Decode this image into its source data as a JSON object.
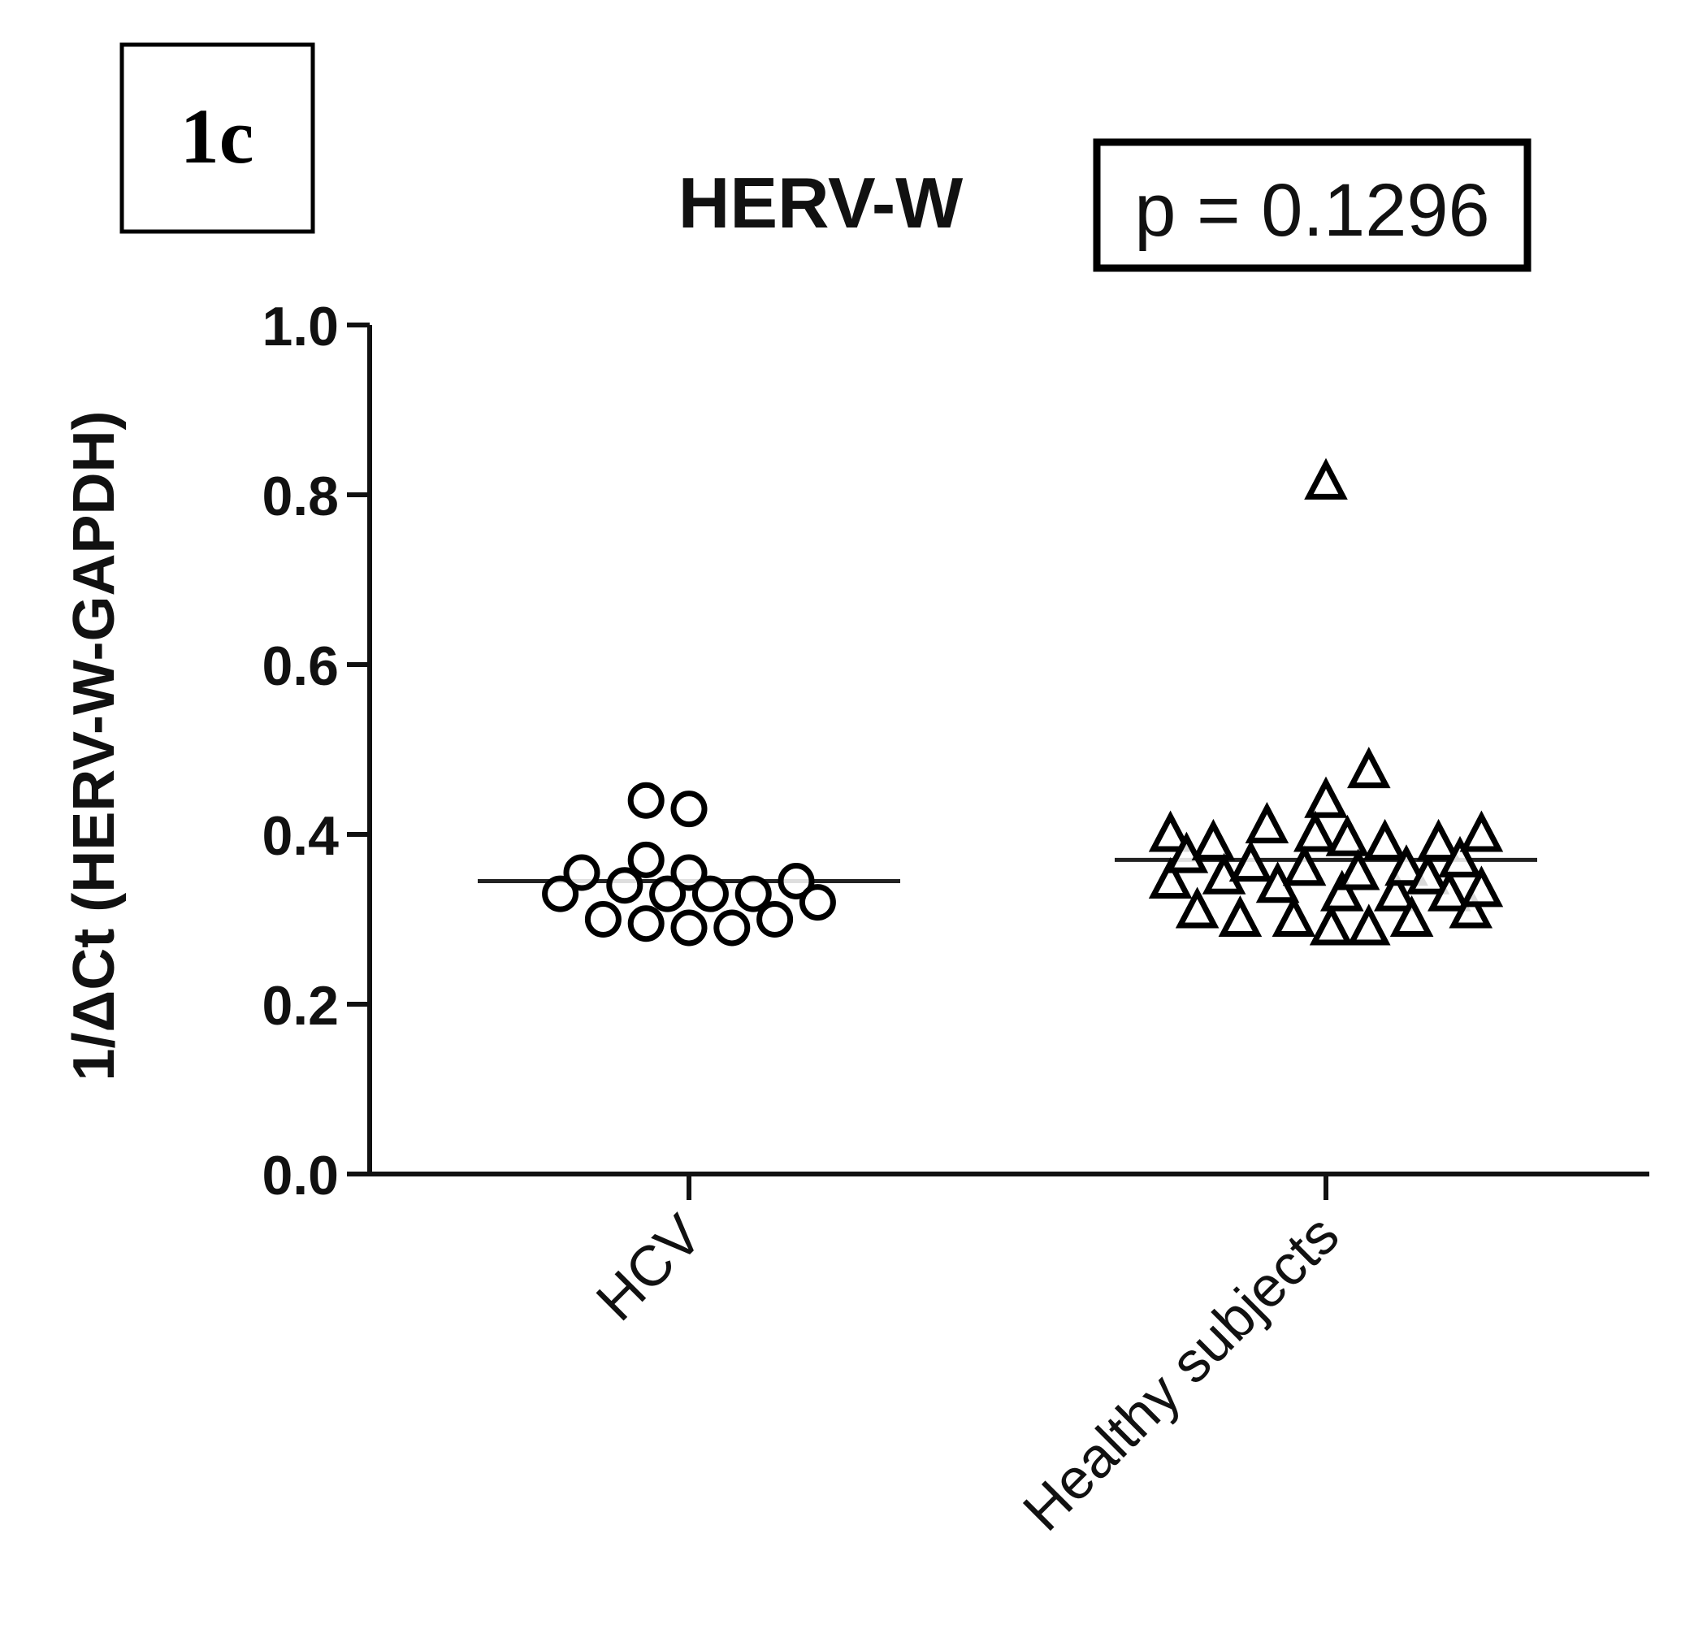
{
  "panel_label": "1c",
  "stat_label": "p = 0.1296",
  "chart_data": {
    "type": "scatter",
    "title": "HERV-W",
    "ylabel": "1/ΔCt (HERV-W-GAPDH)",
    "xlabel": "",
    "ylim": [
      0,
      1
    ],
    "yticks": [
      "0.0",
      "0.2",
      "0.4",
      "0.6",
      "0.8",
      "1.0"
    ],
    "categories": [
      "HCV",
      "Healthy subjects"
    ],
    "grid": false,
    "series": [
      {
        "category": "HCV",
        "marker": "circle",
        "mean": 0.345,
        "points": [
          {
            "dx": -0.24,
            "y": 0.33
          },
          {
            "dx": -0.2,
            "y": 0.355
          },
          {
            "dx": -0.16,
            "y": 0.3
          },
          {
            "dx": -0.12,
            "y": 0.34
          },
          {
            "dx": -0.08,
            "y": 0.44
          },
          {
            "dx": -0.08,
            "y": 0.37
          },
          {
            "dx": -0.08,
            "y": 0.295
          },
          {
            "dx": -0.04,
            "y": 0.33
          },
          {
            "dx": 0.0,
            "y": 0.43
          },
          {
            "dx": 0.0,
            "y": 0.355
          },
          {
            "dx": 0.0,
            "y": 0.29
          },
          {
            "dx": 0.04,
            "y": 0.33
          },
          {
            "dx": 0.08,
            "y": 0.29
          },
          {
            "dx": 0.12,
            "y": 0.33
          },
          {
            "dx": 0.16,
            "y": 0.3
          },
          {
            "dx": 0.2,
            "y": 0.345
          },
          {
            "dx": 0.24,
            "y": 0.32
          }
        ]
      },
      {
        "category": "Healthy subjects",
        "marker": "triangle",
        "mean": 0.37,
        "points": [
          {
            "dx": 0.0,
            "y": 0.815
          },
          {
            "dx": 0.08,
            "y": 0.475
          },
          {
            "dx": 0.0,
            "y": 0.44
          },
          {
            "dx": -0.29,
            "y": 0.4
          },
          {
            "dx": -0.29,
            "y": 0.345
          },
          {
            "dx": -0.26,
            "y": 0.375
          },
          {
            "dx": -0.24,
            "y": 0.31
          },
          {
            "dx": -0.21,
            "y": 0.39
          },
          {
            "dx": -0.19,
            "y": 0.35
          },
          {
            "dx": -0.16,
            "y": 0.3
          },
          {
            "dx": -0.14,
            "y": 0.365
          },
          {
            "dx": -0.11,
            "y": 0.41
          },
          {
            "dx": -0.09,
            "y": 0.34
          },
          {
            "dx": -0.06,
            "y": 0.3
          },
          {
            "dx": -0.04,
            "y": 0.36
          },
          {
            "dx": -0.02,
            "y": 0.4
          },
          {
            "dx": 0.01,
            "y": 0.29
          },
          {
            "dx": 0.03,
            "y": 0.33
          },
          {
            "dx": 0.04,
            "y": 0.395
          },
          {
            "dx": 0.06,
            "y": 0.355
          },
          {
            "dx": 0.08,
            "y": 0.29
          },
          {
            "dx": 0.11,
            "y": 0.39
          },
          {
            "dx": 0.13,
            "y": 0.33
          },
          {
            "dx": 0.15,
            "y": 0.36
          },
          {
            "dx": 0.16,
            "y": 0.3
          },
          {
            "dx": 0.19,
            "y": 0.35
          },
          {
            "dx": 0.21,
            "y": 0.39
          },
          {
            "dx": 0.23,
            "y": 0.33
          },
          {
            "dx": 0.25,
            "y": 0.37
          },
          {
            "dx": 0.27,
            "y": 0.31
          },
          {
            "dx": 0.29,
            "y": 0.4
          },
          {
            "dx": 0.29,
            "y": 0.335
          }
        ]
      }
    ]
  }
}
